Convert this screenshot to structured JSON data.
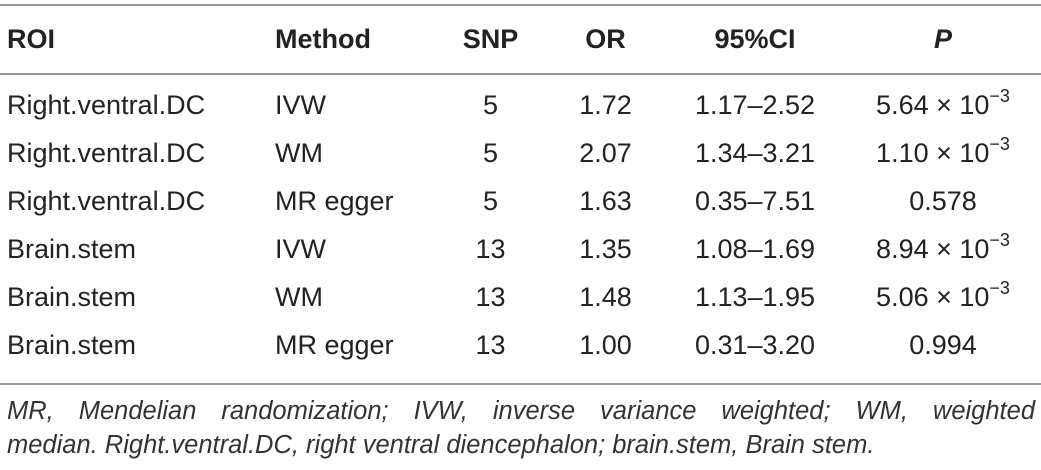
{
  "table": {
    "headers": [
      "ROI",
      "Method",
      "SNP",
      "OR",
      "95%CI",
      "P"
    ],
    "rows": [
      {
        "roi": "Right.ventral.DC",
        "method": "IVW",
        "snp": "5",
        "or": "1.72",
        "ci": "1.17–2.52",
        "p_mantissa": "5.64 × 10",
        "p_exp": "−3"
      },
      {
        "roi": "Right.ventral.DC",
        "method": "WM",
        "snp": "5",
        "or": "2.07",
        "ci": "1.34–3.21",
        "p_mantissa": "1.10 × 10",
        "p_exp": "−3"
      },
      {
        "roi": "Right.ventral.DC",
        "method": "MR egger",
        "snp": "5",
        "or": "1.63",
        "ci": "0.35–7.51",
        "p_mantissa": "0.578",
        "p_exp": ""
      },
      {
        "roi": "Brain.stem",
        "method": "IVW",
        "snp": "13",
        "or": "1.35",
        "ci": "1.08–1.69",
        "p_mantissa": "8.94 × 10",
        "p_exp": "−3"
      },
      {
        "roi": "Brain.stem",
        "method": "WM",
        "snp": "13",
        "or": "1.48",
        "ci": "1.13–1.95",
        "p_mantissa": "5.06 × 10",
        "p_exp": "−3"
      },
      {
        "roi": "Brain.stem",
        "method": "MR egger",
        "snp": "13",
        "or": "1.00",
        "ci": "0.31–3.20",
        "p_mantissa": "0.994",
        "p_exp": ""
      }
    ]
  },
  "footnote": {
    "line1": "MR, Mendelian randomization; IVW, inverse variance weighted; WM, weighted",
    "line2": "median. Right.ventral.DC, right ventral diencephalon; brain.stem, Brain stem."
  }
}
